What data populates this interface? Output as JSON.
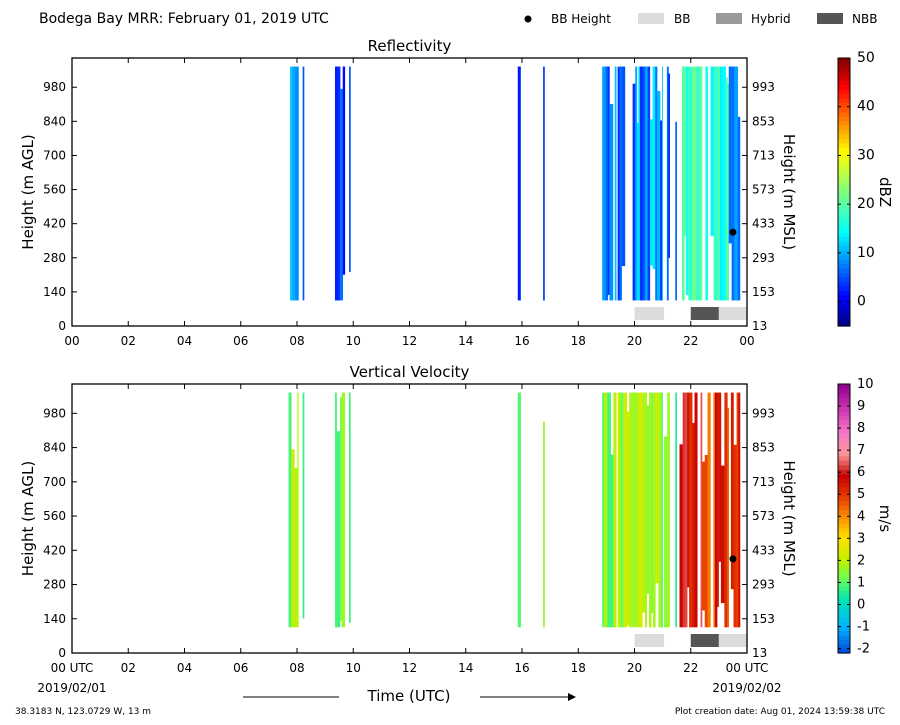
{
  "header": {
    "title": "Bodega Bay MRR:  February 01, 2019 UTC",
    "legend": [
      {
        "label": "BB Height",
        "kind": "dot",
        "color": "#000000"
      },
      {
        "label": "BB",
        "kind": "box",
        "color": "#dcdcdc"
      },
      {
        "label": "Hybrid",
        "kind": "box",
        "color": "#9a9a9a"
      },
      {
        "label": "NBB",
        "kind": "box",
        "color": "#555555"
      }
    ]
  },
  "footer": {
    "coords": "38.3183 N, 123.0729 W, 13 m",
    "creation": "Plot creation date: Aug 01, 2024 13:59:38 UTC",
    "xlabel": "Time (UTC)",
    "start_tick": "00 UTC",
    "start_date": "2019/02/01",
    "end_tick": "00 UTC",
    "end_date": "2019/02/02"
  },
  "chart_data": [
    {
      "type": "heatmap",
      "title": "Reflectivity",
      "xlabel": "Time (UTC)",
      "ylabel": "Height (m AGL)",
      "y2label": "Height (m MSL)",
      "xlim": [
        0,
        24
      ],
      "ylim": [
        0,
        1100
      ],
      "x_ticks": [
        "00",
        "02",
        "04",
        "06",
        "08",
        "10",
        "12",
        "14",
        "16",
        "18",
        "20",
        "22",
        "00"
      ],
      "y_ticks": [
        0,
        140,
        280,
        420,
        560,
        700,
        840,
        980
      ],
      "y2_ticks": [
        13,
        153,
        293,
        433,
        573,
        713,
        853,
        993
      ],
      "colorbar": {
        "label": "dBZ",
        "min": -5,
        "max": 50,
        "ticks": [
          0,
          10,
          20,
          30,
          40,
          50
        ]
      },
      "data_bottom": 105,
      "data_top": 1065,
      "precip_blocks": [
        {
          "t0": 7.7,
          "t1": 8.05,
          "v0": 5,
          "v1": 14
        },
        {
          "t0": 8.2,
          "t1": 8.25,
          "v0": 0,
          "v1": 6
        },
        {
          "t0": 8.35,
          "t1": 8.4,
          "v0": 2,
          "v1": 6
        },
        {
          "t0": 9.35,
          "t1": 9.7,
          "v0": 0,
          "v1": 8
        },
        {
          "t0": 9.85,
          "t1": 9.9,
          "v0": 0,
          "v1": 6
        },
        {
          "t0": 15.85,
          "t1": 15.95,
          "v0": 0,
          "v1": 5
        },
        {
          "t0": 16.75,
          "t1": 16.8,
          "v0": 2,
          "v1": 6
        },
        {
          "t0": 18.85,
          "t1": 19.35,
          "v0": 3,
          "v1": 12
        },
        {
          "t0": 19.4,
          "t1": 21.0,
          "v0": 0,
          "v1": 14
        },
        {
          "t0": 21.05,
          "t1": 21.25,
          "v0": 2,
          "v1": 10
        },
        {
          "t0": 21.45,
          "t1": 21.5,
          "v0": 6,
          "v1": 10
        },
        {
          "t0": 21.6,
          "t1": 22.4,
          "v0": 14,
          "v1": 22
        },
        {
          "t0": 22.4,
          "t1": 23.35,
          "v0": 12,
          "v1": 20
        },
        {
          "t0": 23.35,
          "t1": 23.75,
          "v0": 6,
          "v1": 12
        }
      ],
      "bb_height": [
        {
          "t": 23.5,
          "h": 385
        }
      ],
      "rain_type": [
        {
          "t0": 20.0,
          "t1": 21.05,
          "type": "BB"
        },
        {
          "t0": 22.0,
          "t1": 23.0,
          "type": "NBB"
        },
        {
          "t0": 23.0,
          "t1": 24.0,
          "type": "BB"
        }
      ]
    },
    {
      "type": "heatmap",
      "title": "Vertical Velocity",
      "xlabel": "Time (UTC)",
      "ylabel": "Height (m AGL)",
      "y2label": "Height (m MSL)",
      "xlim": [
        0,
        24
      ],
      "ylim": [
        0,
        1100
      ],
      "x_ticks": [
        "00 UTC",
        "02",
        "04",
        "06",
        "08",
        "10",
        "12",
        "14",
        "16",
        "18",
        "20",
        "22",
        "00 UTC"
      ],
      "y_ticks": [
        0,
        140,
        280,
        420,
        560,
        700,
        840,
        980
      ],
      "y2_ticks": [
        13,
        153,
        293,
        433,
        573,
        713,
        853,
        993
      ],
      "colorbar": {
        "label": "m/s",
        "min": -2.2,
        "max": 10,
        "ticks": [
          -2,
          -1,
          0,
          1,
          2,
          3,
          4,
          5,
          6,
          7,
          8,
          9,
          10
        ]
      },
      "data_bottom": 105,
      "data_top": 1065,
      "precip_blocks": [
        {
          "t0": 7.7,
          "t1": 8.05,
          "v0": 0.5,
          "v1": 2.2
        },
        {
          "t0": 8.2,
          "t1": 8.25,
          "v0": 0.5,
          "v1": 1.5
        },
        {
          "t0": 8.35,
          "t1": 8.4,
          "v0": 0.5,
          "v1": 1.5
        },
        {
          "t0": 9.35,
          "t1": 9.7,
          "v0": 0.5,
          "v1": 2.0
        },
        {
          "t0": 9.85,
          "t1": 9.9,
          "v0": 0.2,
          "v1": 1.2
        },
        {
          "t0": 15.85,
          "t1": 15.95,
          "v0": 0.5,
          "v1": 1.5
        },
        {
          "t0": 16.75,
          "t1": 16.8,
          "v0": 1.5,
          "v1": 2.0
        },
        {
          "t0": 18.85,
          "t1": 19.35,
          "v0": 0.8,
          "v1": 2.2
        },
        {
          "t0": 19.4,
          "t1": 21.0,
          "v0": 0.8,
          "v1": 2.4
        },
        {
          "t0": 21.05,
          "t1": 21.25,
          "v0": 1.0,
          "v1": 2.0
        },
        {
          "t0": 21.45,
          "t1": 21.5,
          "v0": 0.5,
          "v1": 1.5
        },
        {
          "t0": 21.6,
          "t1": 22.4,
          "v0": 5.0,
          "v1": 6.4
        },
        {
          "t0": 22.4,
          "t1": 23.35,
          "v0": 4.2,
          "v1": 6.2
        },
        {
          "t0": 23.35,
          "t1": 23.75,
          "v0": 4.8,
          "v1": 6.0
        }
      ],
      "bb_height": [
        {
          "t": 23.5,
          "h": 385
        }
      ],
      "rain_type": [
        {
          "t0": 20.0,
          "t1": 21.05,
          "type": "BB"
        },
        {
          "t0": 22.0,
          "t1": 23.0,
          "type": "NBB"
        },
        {
          "t0": 23.0,
          "t1": 24.0,
          "type": "BB"
        }
      ]
    }
  ]
}
